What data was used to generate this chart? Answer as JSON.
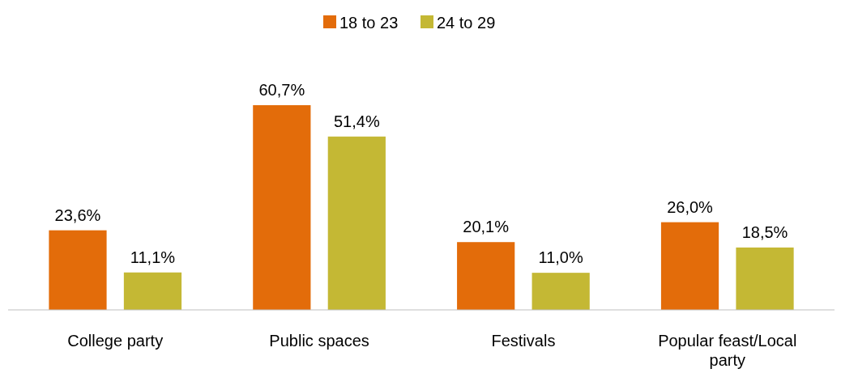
{
  "chart_data": {
    "type": "bar",
    "categories": [
      "College party",
      "Public spaces",
      "Festivals",
      "Popular feast/Local party"
    ],
    "series": [
      {
        "name": "18 to 23",
        "color": "#e36c0a",
        "values": [
          23.6,
          60.7,
          20.1,
          26.0
        ],
        "value_labels": [
          "23,6%",
          "60,7%",
          "20,1%",
          "26,0%"
        ]
      },
      {
        "name": "24 to 29",
        "color": "#c4b834",
        "values": [
          11.1,
          51.4,
          11.0,
          18.5
        ],
        "value_labels": [
          "11,1%",
          "51,4%",
          "11,0%",
          "18,5%"
        ]
      }
    ],
    "legend": "top"
  }
}
